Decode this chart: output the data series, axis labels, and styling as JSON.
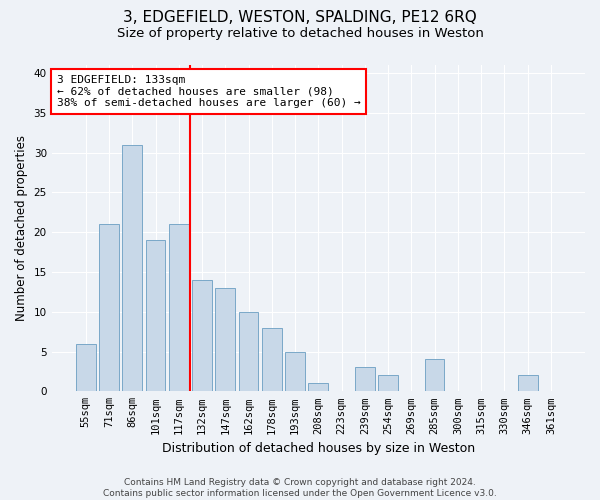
{
  "title": "3, EDGEFIELD, WESTON, SPALDING, PE12 6RQ",
  "subtitle": "Size of property relative to detached houses in Weston",
  "xlabel": "Distribution of detached houses by size in Weston",
  "ylabel": "Number of detached properties",
  "categories": [
    "55sqm",
    "71sqm",
    "86sqm",
    "101sqm",
    "117sqm",
    "132sqm",
    "147sqm",
    "162sqm",
    "178sqm",
    "193sqm",
    "208sqm",
    "223sqm",
    "239sqm",
    "254sqm",
    "269sqm",
    "285sqm",
    "300sqm",
    "315sqm",
    "330sqm",
    "346sqm",
    "361sqm"
  ],
  "values": [
    6,
    21,
    31,
    19,
    21,
    14,
    13,
    10,
    8,
    5,
    1,
    0,
    3,
    2,
    0,
    4,
    0,
    0,
    0,
    2,
    0
  ],
  "bar_color": "#c8d8e8",
  "bar_edge_color": "#7aa8c8",
  "vline_x_index": 5,
  "vline_color": "red",
  "annotation_line1": "3 EDGEFIELD: 133sqm",
  "annotation_line2": "← 62% of detached houses are smaller (98)",
  "annotation_line3": "38% of semi-detached houses are larger (60) →",
  "annotation_box_color": "white",
  "annotation_box_edge_color": "red",
  "ylim": [
    0,
    41
  ],
  "yticks": [
    0,
    5,
    10,
    15,
    20,
    25,
    30,
    35,
    40
  ],
  "footer_text": "Contains HM Land Registry data © Crown copyright and database right 2024.\nContains public sector information licensed under the Open Government Licence v3.0.",
  "background_color": "#eef2f7",
  "grid_color": "white",
  "title_fontsize": 11,
  "subtitle_fontsize": 9.5,
  "xlabel_fontsize": 9,
  "ylabel_fontsize": 8.5,
  "tick_fontsize": 7.5,
  "annotation_fontsize": 8,
  "footer_fontsize": 6.5
}
